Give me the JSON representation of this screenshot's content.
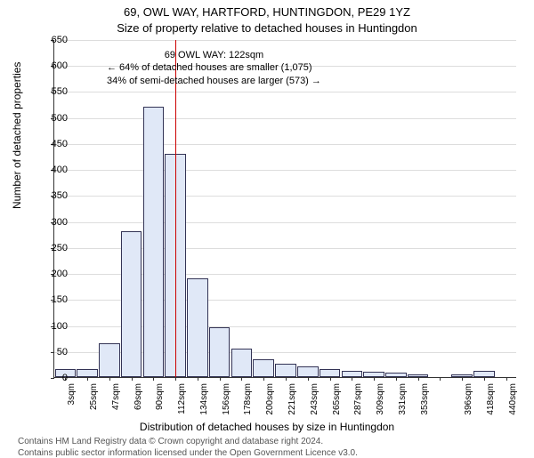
{
  "titles": {
    "line1": "69, OWL WAY, HARTFORD, HUNTINGDON, PE29 1YZ",
    "line2": "Size of property relative to detached houses in Huntingdon"
  },
  "axes": {
    "ylabel": "Number of detached properties",
    "xlabel": "Distribution of detached houses by size in Huntingdon",
    "ylim": [
      0,
      650
    ],
    "ytick_step": 50,
    "ytick_labels": [
      "0",
      "50",
      "100",
      "150",
      "200",
      "250",
      "300",
      "350",
      "400",
      "450",
      "500",
      "550",
      "600",
      "650"
    ],
    "xtick_labels": [
      "3sqm",
      "25sqm",
      "47sqm",
      "69sqm",
      "90sqm",
      "112sqm",
      "134sqm",
      "156sqm",
      "178sqm",
      "200sqm",
      "221sqm",
      "243sqm",
      "265sqm",
      "287sqm",
      "309sqm",
      "331sqm",
      "353sqm",
      "",
      "396sqm",
      "418sqm",
      "440sqm"
    ],
    "grid_color": "#dddddd"
  },
  "bars": {
    "values": [
      15,
      15,
      65,
      280,
      520,
      430,
      190,
      95,
      55,
      35,
      25,
      20,
      15,
      12,
      10,
      8,
      5,
      0,
      5,
      12,
      0
    ],
    "fill_color": "#e0e8f7",
    "edge_color": "#333355",
    "bar_width_frac": 0.95
  },
  "reference": {
    "value_label": "69 OWL WAY: 122sqm",
    "line_between_bins": 5.5,
    "line_color": "#cc0000",
    "annot_line2": "← 64% of detached houses are smaller (1,075)",
    "annot_line3": "34% of semi-detached houses are larger (573) →"
  },
  "footer": {
    "line1": "Contains HM Land Registry data © Crown copyright and database right 2024.",
    "line2": "Contains public sector information licensed under the Open Government Licence v3.0."
  },
  "style": {
    "background_color": "#ffffff",
    "font_family": "Arial, sans-serif",
    "title_fontsize": 13,
    "label_fontsize": 12,
    "tick_fontsize": 11,
    "footer_fontsize": 10
  }
}
